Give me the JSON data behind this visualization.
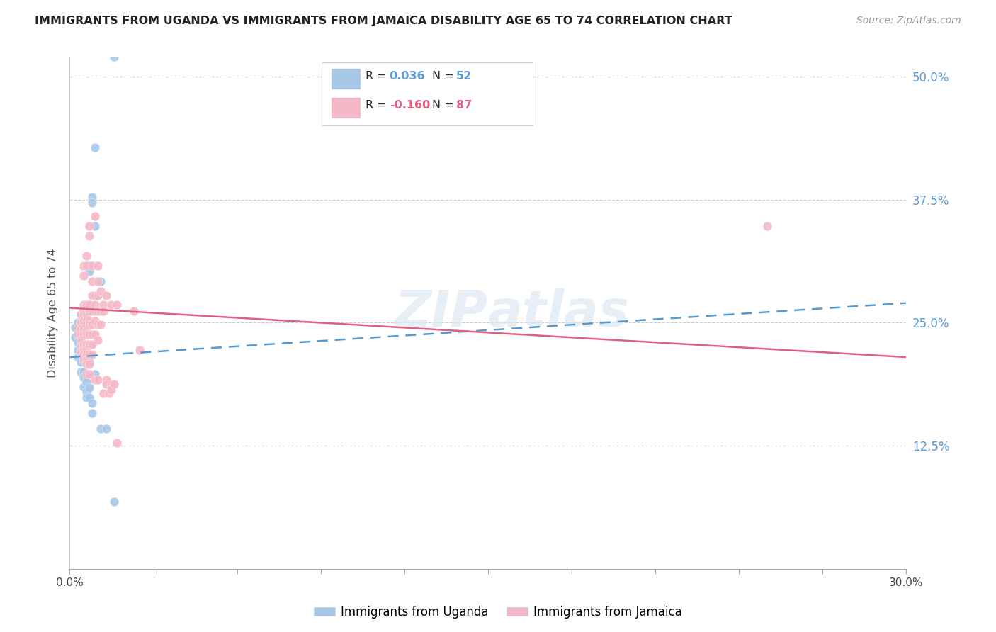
{
  "title": "IMMIGRANTS FROM UGANDA VS IMMIGRANTS FROM JAMAICA DISABILITY AGE 65 TO 74 CORRELATION CHART",
  "source": "Source: ZipAtlas.com",
  "ylabel": "Disability Age 65 to 74",
  "ytick_labels": [
    "12.5%",
    "25.0%",
    "37.5%",
    "50.0%"
  ],
  "ytick_values": [
    0.125,
    0.25,
    0.375,
    0.5
  ],
  "xlim": [
    0.0,
    0.3
  ],
  "ylim": [
    0.0,
    0.52
  ],
  "uganda_color": "#a8c8e8",
  "jamaica_color": "#f5b8c8",
  "uganda_line_color": "#5599cc",
  "jamaica_line_color": "#e06080",
  "uganda_R": "0.036",
  "uganda_N": "52",
  "jamaica_R": "-0.160",
  "jamaica_N": "87",
  "legend_label_uganda": "Immigrants from Uganda",
  "legend_label_jamaica": "Immigrants from Jamaica",
  "uganda_points": [
    [
      0.002,
      0.245
    ],
    [
      0.002,
      0.235
    ],
    [
      0.003,
      0.25
    ],
    [
      0.003,
      0.24
    ],
    [
      0.003,
      0.23
    ],
    [
      0.003,
      0.222
    ],
    [
      0.003,
      0.215
    ],
    [
      0.004,
      0.258
    ],
    [
      0.004,
      0.25
    ],
    [
      0.004,
      0.244
    ],
    [
      0.004,
      0.238
    ],
    [
      0.004,
      0.232
    ],
    [
      0.004,
      0.225
    ],
    [
      0.004,
      0.22
    ],
    [
      0.004,
      0.215
    ],
    [
      0.004,
      0.21
    ],
    [
      0.004,
      0.2
    ],
    [
      0.005,
      0.245
    ],
    [
      0.005,
      0.228
    ],
    [
      0.005,
      0.22
    ],
    [
      0.005,
      0.215
    ],
    [
      0.005,
      0.2
    ],
    [
      0.005,
      0.194
    ],
    [
      0.005,
      0.185
    ],
    [
      0.006,
      0.225
    ],
    [
      0.006,
      0.22
    ],
    [
      0.006,
      0.215
    ],
    [
      0.006,
      0.19
    ],
    [
      0.006,
      0.18
    ],
    [
      0.006,
      0.174
    ],
    [
      0.007,
      0.308
    ],
    [
      0.007,
      0.302
    ],
    [
      0.007,
      0.268
    ],
    [
      0.007,
      0.262
    ],
    [
      0.007,
      0.238
    ],
    [
      0.007,
      0.21
    ],
    [
      0.007,
      0.198
    ],
    [
      0.007,
      0.184
    ],
    [
      0.007,
      0.174
    ],
    [
      0.008,
      0.378
    ],
    [
      0.008,
      0.372
    ],
    [
      0.008,
      0.228
    ],
    [
      0.008,
      0.168
    ],
    [
      0.008,
      0.158
    ],
    [
      0.009,
      0.428
    ],
    [
      0.009,
      0.348
    ],
    [
      0.009,
      0.198
    ],
    [
      0.011,
      0.292
    ],
    [
      0.011,
      0.142
    ],
    [
      0.013,
      0.142
    ],
    [
      0.016,
      0.068
    ],
    [
      0.016,
      0.52
    ]
  ],
  "jamaica_points": [
    [
      0.003,
      0.245
    ],
    [
      0.003,
      0.238
    ],
    [
      0.004,
      0.258
    ],
    [
      0.004,
      0.25
    ],
    [
      0.004,
      0.244
    ],
    [
      0.004,
      0.238
    ],
    [
      0.004,
      0.232
    ],
    [
      0.004,
      0.226
    ],
    [
      0.004,
      0.22
    ],
    [
      0.005,
      0.308
    ],
    [
      0.005,
      0.298
    ],
    [
      0.005,
      0.268
    ],
    [
      0.005,
      0.262
    ],
    [
      0.005,
      0.258
    ],
    [
      0.005,
      0.252
    ],
    [
      0.005,
      0.244
    ],
    [
      0.005,
      0.238
    ],
    [
      0.005,
      0.228
    ],
    [
      0.005,
      0.222
    ],
    [
      0.005,
      0.218
    ],
    [
      0.005,
      0.212
    ],
    [
      0.006,
      0.318
    ],
    [
      0.006,
      0.308
    ],
    [
      0.006,
      0.268
    ],
    [
      0.006,
      0.258
    ],
    [
      0.006,
      0.252
    ],
    [
      0.006,
      0.248
    ],
    [
      0.006,
      0.242
    ],
    [
      0.006,
      0.238
    ],
    [
      0.006,
      0.228
    ],
    [
      0.006,
      0.222
    ],
    [
      0.006,
      0.218
    ],
    [
      0.006,
      0.212
    ],
    [
      0.006,
      0.208
    ],
    [
      0.006,
      0.198
    ],
    [
      0.007,
      0.348
    ],
    [
      0.007,
      0.338
    ],
    [
      0.007,
      0.268
    ],
    [
      0.007,
      0.262
    ],
    [
      0.007,
      0.252
    ],
    [
      0.007,
      0.248
    ],
    [
      0.007,
      0.238
    ],
    [
      0.007,
      0.228
    ],
    [
      0.007,
      0.218
    ],
    [
      0.007,
      0.208
    ],
    [
      0.007,
      0.198
    ],
    [
      0.008,
      0.308
    ],
    [
      0.008,
      0.292
    ],
    [
      0.008,
      0.278
    ],
    [
      0.008,
      0.262
    ],
    [
      0.008,
      0.248
    ],
    [
      0.008,
      0.238
    ],
    [
      0.008,
      0.228
    ],
    [
      0.008,
      0.218
    ],
    [
      0.009,
      0.358
    ],
    [
      0.009,
      0.278
    ],
    [
      0.009,
      0.268
    ],
    [
      0.009,
      0.262
    ],
    [
      0.009,
      0.252
    ],
    [
      0.009,
      0.238
    ],
    [
      0.009,
      0.192
    ],
    [
      0.01,
      0.308
    ],
    [
      0.01,
      0.292
    ],
    [
      0.01,
      0.278
    ],
    [
      0.01,
      0.262
    ],
    [
      0.01,
      0.248
    ],
    [
      0.01,
      0.232
    ],
    [
      0.01,
      0.192
    ],
    [
      0.011,
      0.282
    ],
    [
      0.011,
      0.262
    ],
    [
      0.011,
      0.248
    ],
    [
      0.012,
      0.268
    ],
    [
      0.012,
      0.262
    ],
    [
      0.012,
      0.178
    ],
    [
      0.013,
      0.278
    ],
    [
      0.013,
      0.192
    ],
    [
      0.013,
      0.188
    ],
    [
      0.014,
      0.178
    ],
    [
      0.015,
      0.268
    ],
    [
      0.015,
      0.188
    ],
    [
      0.015,
      0.182
    ],
    [
      0.016,
      0.188
    ],
    [
      0.017,
      0.268
    ],
    [
      0.017,
      0.128
    ],
    [
      0.023,
      0.262
    ],
    [
      0.025,
      0.222
    ],
    [
      0.25,
      0.348
    ]
  ]
}
